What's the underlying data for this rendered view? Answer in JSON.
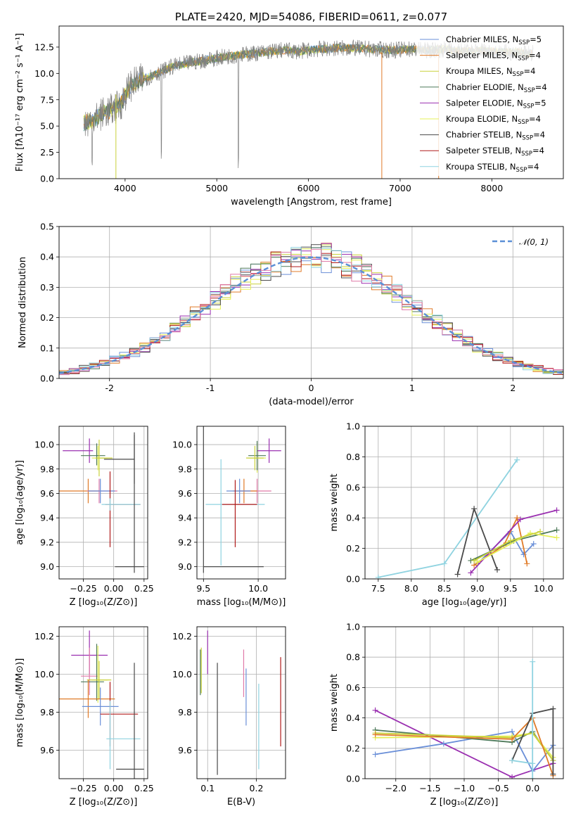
{
  "colors": {
    "chabrier_miles": "#6a8fd8",
    "salpeter_miles": "#e07b29",
    "kroupa_miles": "#c9d13a",
    "chabrier_elodie": "#4f7a5a",
    "salpeter_elodie": "#9a2fb0",
    "kroupa_elodie": "#e6f05a",
    "chabrier_stelib": "#4a4a4a",
    "salpeter_stelib": "#b01a1a",
    "kroupa_stelib": "#8fd3e0",
    "pink": "#e07aa8"
  },
  "models": [
    {
      "key": "chabrier_miles",
      "label": "Chabrier MILES, N",
      "sub": "SSP",
      "n": "=5"
    },
    {
      "key": "salpeter_miles",
      "label": "Salpeter MILES, N",
      "sub": "SSP",
      "n": "=4"
    },
    {
      "key": "kroupa_miles",
      "label": "Kroupa MILES, N",
      "sub": "SSP",
      "n": "=4"
    },
    {
      "key": "chabrier_elodie",
      "label": "Chabrier ELODIE, N",
      "sub": "SSP",
      "n": "=4"
    },
    {
      "key": "salpeter_elodie",
      "label": "Salpeter ELODIE, N",
      "sub": "SSP",
      "n": "=5"
    },
    {
      "key": "kroupa_elodie",
      "label": "Kroupa ELODIE, N",
      "sub": "SSP",
      "n": "=4"
    },
    {
      "key": "chabrier_stelib",
      "label": "Chabrier STELIB, N",
      "sub": "SSP",
      "n": "=4"
    },
    {
      "key": "salpeter_stelib",
      "label": "Salpeter STELIB, N",
      "sub": "SSP",
      "n": "=4"
    },
    {
      "key": "kroupa_stelib",
      "label": "Kroupa STELIB, N",
      "sub": "SSP",
      "n": "=4"
    }
  ],
  "chart_data": [
    {
      "id": "spectrum",
      "type": "line",
      "title": "PLATE=2420, MJD=54086, FIBERID=0611, z=0.077",
      "xlabel": "wavelength [Angstrom, rest frame]",
      "ylabel": "Flux [fλ10⁻¹⁷ erg cm⁻² s⁻¹ A⁻¹]",
      "xlim": [
        3280,
        8780
      ],
      "ylim": [
        0,
        14.5
      ],
      "xticks": [
        4000,
        5000,
        6000,
        7000,
        8000
      ],
      "yticks": [
        0.0,
        2.5,
        5.0,
        7.5,
        10.0,
        12.5
      ],
      "ytick_labels": [
        "0.0",
        "2.5",
        "5.0",
        "7.5",
        "10.0",
        "12.5"
      ],
      "continuum_x": [
        3550,
        3650,
        3750,
        3850,
        3950,
        4050,
        4150,
        4300,
        4500,
        4700,
        4900,
        5100,
        5300,
        5500,
        5700,
        5900,
        6100,
        6300,
        6500,
        6700,
        6900,
        7100,
        7300,
        7500,
        7700,
        7900,
        8100,
        8300,
        8450
      ],
      "continuum_y": [
        5.3,
        5.5,
        6.2,
        6.5,
        7.0,
        8.8,
        9.3,
        9.8,
        10.6,
        11.0,
        11.3,
        11.6,
        11.8,
        12.0,
        12.2,
        12.1,
        12.3,
        12.4,
        12.4,
        12.3,
        12.2,
        12.3,
        12.2,
        12.3,
        12.1,
        12.2,
        12.0,
        12.0,
        11.9
      ],
      "legend_position": "top-right"
    },
    {
      "id": "residuals",
      "type": "histogram",
      "xlabel": "(data-model)/error",
      "ylabel": "Normed distribution",
      "xlim": [
        -2.5,
        2.5
      ],
      "ylim": [
        0,
        0.5
      ],
      "xticks": [
        -2,
        -1,
        0,
        1,
        2
      ],
      "yticks": [
        0.0,
        0.1,
        0.2,
        0.3,
        0.4,
        0.5
      ],
      "ytick_labels": [
        "0.0",
        "0.1",
        "0.2",
        "0.3",
        "0.4",
        "0.5"
      ],
      "reference_label": "𝒩(0, 1)",
      "legend_position": "top-right",
      "grid": true
    },
    {
      "id": "age_metallicity",
      "type": "errorbar",
      "xlabel": "Z [log₁₀(Z/Z⊙)]",
      "ylabel": "age  [log₁₀(age/yr)]",
      "xlim": [
        -0.45,
        0.28
      ],
      "ylim": [
        8.9,
        10.15
      ],
      "xticks": [
        -0.25,
        0.0,
        0.25
      ],
      "xtick_labels": [
        "−0.25",
        "0.00",
        "0.25"
      ],
      "yticks": [
        9.0,
        9.2,
        9.4,
        9.6,
        9.8,
        10.0
      ],
      "ytick_labels": [
        "9.0",
        "9.2",
        "9.4",
        "9.6",
        "9.8",
        "10.0"
      ],
      "points": [
        {
          "c": "salpeter_elodie",
          "x": -0.2,
          "y": 9.95,
          "ex": [
            0.22,
            0.03
          ],
          "ey": [
            0.1,
            0.1
          ]
        },
        {
          "c": "kroupa_elodie",
          "x": -0.13,
          "y": 9.89,
          "ex": [
            0.05,
            0.08
          ],
          "ey": [
            0.1,
            0.1
          ]
        },
        {
          "c": "chabrier_elodie",
          "x": -0.14,
          "y": 9.91,
          "ex": [
            0.13,
            0.07
          ],
          "ey": [
            0.08,
            0.1
          ]
        },
        {
          "c": "kroupa_miles",
          "x": -0.12,
          "y": 9.89,
          "ex": [
            0.03,
            0.11
          ],
          "ey": [
            0.15,
            0.15
          ]
        },
        {
          "c": "salpeter_miles",
          "x": -0.21,
          "y": 9.62,
          "ex": [
            0.26,
            0.09
          ],
          "ey": [
            0.1,
            0.1
          ]
        },
        {
          "c": "pink",
          "x": -0.12,
          "y": 9.62,
          "ex": [
            0.1,
            0.15
          ],
          "ey": [
            0.1,
            0.1
          ]
        },
        {
          "c": "chabrier_miles",
          "x": -0.11,
          "y": 9.62,
          "ex": [
            0.1,
            0.12
          ],
          "ey": [
            0.1,
            0.1
          ]
        },
        {
          "c": "chabrier_stelib",
          "x": 0.17,
          "y": 9.88,
          "ex": [
            0.25,
            0.0
          ],
          "ey": [
            0.2,
            0.2
          ]
        },
        {
          "c": "salpeter_stelib",
          "x": -0.03,
          "y": 9.51,
          "ex": [
            0.04,
            0.25
          ],
          "ey": [
            0.35,
            0.27
          ]
        },
        {
          "c": "kroupa_stelib",
          "x": -0.03,
          "y": 9.51,
          "ex": [
            0.07,
            0.25
          ],
          "ey": [
            0.05,
            0.05
          ]
        },
        {
          "c": "chabrier_stelib",
          "x": 0.17,
          "y": 9.0,
          "ex": [
            0.16,
            0.08
          ],
          "ey": [
            0.05,
            1.1
          ]
        }
      ]
    },
    {
      "id": "age_mass",
      "type": "errorbar",
      "xlabel": "mass [log₁₀(M/M⊙)]",
      "xlim": [
        9.44,
        10.25
      ],
      "ylim": [
        8.9,
        10.15
      ],
      "xticks": [
        9.5,
        10.0
      ],
      "xtick_labels": [
        "9.5",
        "10.0"
      ],
      "yticks": [
        9.0,
        9.2,
        9.4,
        9.6,
        9.8,
        10.0
      ],
      "ytick_labels": [
        "9.0",
        "9.2",
        "9.4",
        "9.6",
        "9.8",
        "10.0"
      ],
      "points": [
        {
          "c": "salpeter_elodie",
          "x": 10.1,
          "y": 9.95,
          "ex": [
            0.11,
            0.11
          ],
          "ey": [
            0.1,
            0.1
          ]
        },
        {
          "c": "kroupa_elodie",
          "x": 9.99,
          "y": 9.89,
          "ex": [
            0.08,
            0.08
          ],
          "ey": [
            0.12,
            0.12
          ]
        },
        {
          "c": "chabrier_elodie",
          "x": 9.99,
          "y": 9.91,
          "ex": [
            0.08,
            0.08
          ],
          "ey": [
            0.12,
            0.12
          ]
        },
        {
          "c": "kroupa_miles",
          "x": 9.97,
          "y": 9.89,
          "ex": [
            0.08,
            0.08
          ],
          "ey": [
            0.1,
            0.1
          ]
        },
        {
          "c": "pink",
          "x": 9.99,
          "y": 9.62,
          "ex": [
            0.16,
            0.13
          ],
          "ey": [
            0.1,
            0.1
          ]
        },
        {
          "c": "salpeter_miles",
          "x": 9.87,
          "y": 9.62,
          "ex": [
            0.1,
            0.12
          ],
          "ey": [
            0.1,
            0.1
          ]
        },
        {
          "c": "chabrier_miles",
          "x": 9.83,
          "y": 9.62,
          "ex": [
            0.12,
            0.1
          ],
          "ey": [
            0.1,
            0.1
          ]
        },
        {
          "c": "kroupa_stelib",
          "x": 9.66,
          "y": 9.51,
          "ex": [
            0.14,
            0.4
          ],
          "ey": [
            0.5,
            0.37
          ]
        },
        {
          "c": "salpeter_stelib",
          "x": 9.79,
          "y": 9.51,
          "ex": [
            0.12,
            0.2
          ],
          "ey": [
            0.35,
            0.2
          ]
        },
        {
          "c": "chabrier_stelib",
          "x": 9.5,
          "y": 9.0,
          "ex": [
            0.0,
            0.55
          ],
          "ey": [
            0.05,
            1.2
          ]
        }
      ]
    },
    {
      "id": "mass_weight_age",
      "type": "line",
      "xlabel": "age  [log₁₀(age/yr)]",
      "ylabel": "mass weight",
      "xlim": [
        7.3,
        10.3
      ],
      "ylim": [
        0,
        1.0
      ],
      "xticks": [
        7.5,
        8.0,
        8.5,
        9.0,
        9.5,
        10.0
      ],
      "xtick_labels": [
        "7.5",
        "8.0",
        "8.5",
        "9.0",
        "9.5",
        "10.0"
      ],
      "yticks": [
        0.0,
        0.2,
        0.4,
        0.6,
        0.8,
        1.0
      ],
      "ytick_labels": [
        "0.0",
        "0.2",
        "0.4",
        "0.6",
        "0.8",
        "1.0"
      ],
      "grid": true,
      "series": [
        {
          "c": "kroupa_stelib",
          "x": [
            7.5,
            8.5,
            9.6
          ],
          "y": [
            0.01,
            0.1,
            0.78
          ]
        },
        {
          "c": "chabrier_stelib",
          "x": [
            8.7,
            8.95,
            9.3
          ],
          "y": [
            0.03,
            0.46,
            0.06
          ]
        },
        {
          "c": "chabrier_miles",
          "x": [
            9.0,
            9.5,
            9.7,
            9.85
          ],
          "y": [
            0.1,
            0.31,
            0.16,
            0.23
          ]
        },
        {
          "c": "salpeter_miles",
          "x": [
            8.95,
            9.4,
            9.6,
            9.75
          ],
          "y": [
            0.09,
            0.22,
            0.4,
            0.1
          ]
        },
        {
          "c": "salpeter_elodie",
          "x": [
            8.9,
            9.65,
            10.2
          ],
          "y": [
            0.04,
            0.39,
            0.45
          ]
        },
        {
          "c": "chabrier_elodie",
          "x": [
            8.9,
            9.55,
            10.2
          ],
          "y": [
            0.12,
            0.25,
            0.32
          ]
        },
        {
          "c": "kroupa_elodie",
          "x": [
            9.0,
            9.8,
            10.2
          ],
          "y": [
            0.11,
            0.3,
            0.27
          ]
        },
        {
          "c": "kroupa_miles",
          "x": [
            8.95,
            9.5,
            9.95
          ],
          "y": [
            0.12,
            0.25,
            0.31
          ]
        }
      ]
    },
    {
      "id": "mass_metallicity",
      "type": "errorbar",
      "xlabel": "Z [log₁₀(Z/Z⊙)]",
      "ylabel": "mass [log₁₀(M/M⊙)]",
      "xlim": [
        -0.45,
        0.28
      ],
      "ylim": [
        9.45,
        10.25
      ],
      "xticks": [
        -0.25,
        0.0,
        0.25
      ],
      "xtick_labels": [
        "−0.25",
        "0.00",
        "0.25"
      ],
      "yticks": [
        9.6,
        9.8,
        10.0,
        10.2
      ],
      "ytick_labels": [
        "9.6",
        "9.8",
        "10.0",
        "10.2"
      ],
      "points": [
        {
          "c": "salpeter_elodie",
          "x": -0.2,
          "y": 10.1,
          "ex": [
            0.15,
            0.15
          ],
          "ey": [
            0.1,
            0.13
          ]
        },
        {
          "c": "pink",
          "x": -0.2,
          "y": 9.99,
          "ex": [
            0.07,
            0.07
          ],
          "ey": [
            0.1,
            0.15
          ]
        },
        {
          "c": "kroupa_elodie",
          "x": -0.13,
          "y": 9.97,
          "ex": [
            0.05,
            0.08
          ],
          "ey": [
            0.12,
            0.18
          ]
        },
        {
          "c": "chabrier_elodie",
          "x": -0.14,
          "y": 9.96,
          "ex": [
            0.13,
            0.06
          ],
          "ey": [
            0.1,
            0.2
          ]
        },
        {
          "c": "kroupa_miles",
          "x": -0.12,
          "y": 9.97,
          "ex": [
            0.1,
            0.1
          ],
          "ey": [
            0.1,
            0.1
          ]
        },
        {
          "c": "salpeter_miles",
          "x": -0.21,
          "y": 9.87,
          "ex": [
            0.25,
            0.22
          ],
          "ey": [
            0.1,
            0.1
          ]
        },
        {
          "c": "chabrier_miles",
          "x": -0.11,
          "y": 9.83,
          "ex": [
            0.15,
            0.15
          ],
          "ey": [
            0.1,
            0.1
          ]
        },
        {
          "c": "salpeter_stelib",
          "x": -0.03,
          "y": 9.79,
          "ex": [
            0.08,
            0.23
          ],
          "ey": [
            0.17,
            0.17
          ]
        },
        {
          "c": "kroupa_stelib",
          "x": -0.03,
          "y": 9.66,
          "ex": [
            0.03,
            0.25
          ],
          "ey": [
            0.16,
            0.2
          ]
        },
        {
          "c": "chabrier_stelib",
          "x": 0.17,
          "y": 9.5,
          "ex": [
            0.15,
            0.08
          ],
          "ey": [
            0.05,
            0.56
          ]
        }
      ]
    },
    {
      "id": "mass_ebv",
      "type": "errorbar",
      "xlabel": "E(B-V)",
      "xlim": [
        0.078,
        0.26
      ],
      "ylim": [
        9.45,
        10.25
      ],
      "xticks": [
        0.1,
        0.2
      ],
      "xtick_labels": [
        "0.1",
        "0.2"
      ],
      "yticks": [
        9.6,
        9.8,
        10.0,
        10.2
      ],
      "ytick_labels": [
        "9.6",
        "9.8",
        "10.0",
        "10.2"
      ],
      "points": [
        {
          "c": "kroupa_miles",
          "x": 0.087,
          "y": 10.02,
          "ex": [
            0,
            0
          ],
          "ey": [
            0.12,
            0.12
          ]
        },
        {
          "c": "chabrier_elodie",
          "x": 0.085,
          "y": 10.01,
          "ex": [
            0,
            0
          ],
          "ey": [
            0.12,
            0.12
          ]
        },
        {
          "c": "salpeter_elodie",
          "x": 0.1,
          "y": 10.1,
          "ex": [
            0,
            0
          ],
          "ey": [
            0.1,
            0.13
          ]
        },
        {
          "c": "chabrier_stelib",
          "x": 0.12,
          "y": 9.75,
          "ex": [
            0,
            0
          ],
          "ey": [
            0.28,
            0.31
          ]
        },
        {
          "c": "pink",
          "x": 0.174,
          "y": 10.0,
          "ex": [
            0,
            0
          ],
          "ey": [
            0.12,
            0.13
          ]
        },
        {
          "c": "chabrier_miles",
          "x": 0.179,
          "y": 9.9,
          "ex": [
            0,
            0
          ],
          "ey": [
            0.17,
            0.13
          ]
        },
        {
          "c": "kroupa_stelib",
          "x": 0.205,
          "y": 9.73,
          "ex": [
            0,
            0
          ],
          "ey": [
            0.23,
            0.22
          ]
        },
        {
          "c": "salpeter_stelib",
          "x": 0.25,
          "y": 9.85,
          "ex": [
            0,
            0
          ],
          "ey": [
            0.23,
            0.24
          ]
        }
      ]
    },
    {
      "id": "mass_weight_metallicity",
      "type": "line",
      "xlabel": "Z [log₁₀(Z/Z⊙)]",
      "ylabel": "mass weight",
      "xlim": [
        -2.45,
        0.45
      ],
      "ylim": [
        0,
        1.0
      ],
      "xticks": [
        -2.0,
        -1.5,
        -1.0,
        -0.5,
        0.0
      ],
      "xtick_labels": [
        "−2.0",
        "−1.5",
        "−1.0",
        "−0.5",
        "0.0"
      ],
      "yticks": [
        0.0,
        0.2,
        0.4,
        0.6,
        0.8,
        1.0
      ],
      "ytick_labels": [
        "0.0",
        "0.2",
        "0.4",
        "0.6",
        "0.8",
        "1.0"
      ],
      "grid": true,
      "series": [
        {
          "c": "salpeter_elodie",
          "x": [
            -2.3,
            -0.3,
            0.3
          ],
          "y": [
            0.45,
            0.01,
            0.1
          ]
        },
        {
          "c": "chabrier_miles",
          "x": [
            -2.3,
            -1.3,
            -0.3,
            0.0,
            0.3
          ],
          "y": [
            0.16,
            0.23,
            0.31,
            0.05,
            0.22
          ]
        },
        {
          "c": "chabrier_elodie",
          "x": [
            -2.3,
            -0.3,
            0.0,
            0.3
          ],
          "y": [
            0.32,
            0.24,
            0.31,
            0.12
          ]
        },
        {
          "c": "kroupa_elodie",
          "x": [
            -2.3,
            -0.3,
            0.0,
            0.3
          ],
          "y": [
            0.27,
            0.28,
            0.3,
            0.14
          ]
        },
        {
          "c": "kroupa_miles",
          "x": [
            -2.3,
            -0.3,
            0.0,
            0.3
          ],
          "y": [
            0.3,
            0.27,
            0.3,
            0.12
          ]
        },
        {
          "c": "salpeter_miles",
          "x": [
            -2.3,
            -0.3,
            0.0,
            0.3
          ],
          "y": [
            0.29,
            0.26,
            0.4,
            0.02
          ]
        },
        {
          "c": "chabrier_stelib",
          "x": [
            -0.3,
            0.0,
            0.3,
            0.3
          ],
          "y": [
            0.12,
            0.43,
            0.46,
            0.03
          ]
        },
        {
          "c": "kroupa_stelib",
          "x": [
            -0.3,
            0.0,
            0.0,
            0.0
          ],
          "y": [
            0.12,
            0.1,
            0.77,
            0.0
          ]
        }
      ]
    }
  ]
}
